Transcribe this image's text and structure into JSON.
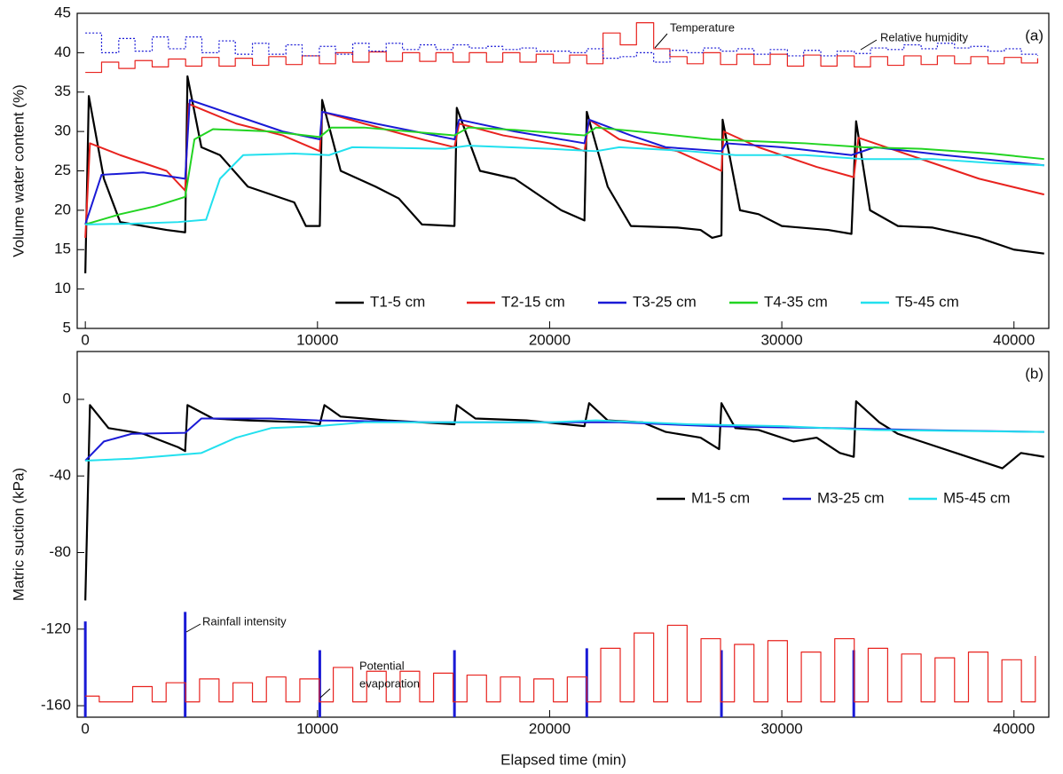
{
  "chart_data": [
    {
      "type": "line",
      "y_label": "Volume water content (%)",
      "panel_label": "(a)",
      "xlim": [
        -350,
        41500
      ],
      "xticks": [
        0,
        10000,
        20000,
        30000,
        40000
      ],
      "ylim": [
        5,
        45
      ],
      "yticks": [
        5,
        10,
        15,
        20,
        25,
        30,
        35,
        40,
        45
      ],
      "legend": "lower right",
      "annotations": [
        "Temperature",
        "Relative humidity"
      ],
      "series": [
        {
          "name": "T1-5 cm",
          "color": "#000000",
          "width": 2.2,
          "x": [
            0,
            150,
            800,
            1500,
            2500,
            3500,
            4300,
            4400,
            5000,
            5800,
            7000,
            8000,
            9000,
            9500,
            10100,
            10200,
            11000,
            12500,
            13500,
            14500,
            15900,
            16000,
            17000,
            18500,
            19500,
            20500,
            21500,
            21600,
            22500,
            23500,
            25500,
            26500,
            27000,
            27400,
            27450,
            28200,
            29000,
            30000,
            32000,
            33000,
            33200,
            33800,
            35000,
            36500,
            38500,
            40000,
            41300
          ],
          "values": [
            12,
            34.5,
            24,
            18.5,
            18,
            17.5,
            17.2,
            37,
            28,
            27,
            23,
            22,
            21,
            18,
            18,
            34,
            25,
            23,
            21.5,
            18.2,
            18,
            33,
            25,
            24,
            22,
            20,
            18.7,
            32.5,
            23,
            18,
            17.8,
            17.5,
            16.5,
            16.8,
            31.5,
            20,
            19.5,
            18,
            17.5,
            17,
            31.3,
            20,
            18,
            17.8,
            16.5,
            15,
            14.5
          ]
        },
        {
          "name": "T2-15 cm",
          "color": "#e8231f",
          "width": 2,
          "x": [
            0,
            200,
            1500,
            3500,
            4300,
            4450,
            6500,
            8500,
            10100,
            10200,
            12000,
            14500,
            15900,
            16100,
            18000,
            21000,
            21500,
            21700,
            23000,
            25500,
            27400,
            27500,
            29000,
            31500,
            33100,
            33300,
            35500,
            38500,
            41300
          ],
          "values": [
            16.5,
            28.5,
            27,
            25,
            22.5,
            33.5,
            31,
            29.5,
            27.5,
            32.5,
            31,
            29,
            28,
            31,
            29.5,
            28,
            27.5,
            31.5,
            29,
            27.5,
            25,
            30,
            28,
            25.5,
            24.2,
            29.2,
            27,
            24,
            22
          ]
        },
        {
          "name": "T3-25 cm",
          "color": "#1a1ad6",
          "width": 2,
          "x": [
            0,
            700,
            2500,
            4300,
            4500,
            6500,
            8500,
            10100,
            10200,
            12500,
            15900,
            16100,
            18500,
            21500,
            21700,
            23500,
            25000,
            27400,
            27600,
            30000,
            33000,
            34000,
            37000,
            41300
          ],
          "values": [
            18.2,
            24.5,
            24.8,
            24,
            34,
            32,
            30,
            29,
            32.5,
            31,
            29,
            31.5,
            30,
            28.5,
            31.5,
            29.5,
            28,
            27.5,
            28.5,
            28,
            27,
            28,
            27,
            25.7
          ]
        },
        {
          "name": "T4-35 cm",
          "color": "#22d422",
          "width": 2,
          "x": [
            0,
            1500,
            3000,
            4300,
            4700,
            5500,
            8000,
            10100,
            10600,
            12000,
            15900,
            16500,
            18500,
            21500,
            22000,
            24500,
            27000,
            28500,
            31000,
            33500,
            36000,
            39000,
            41300
          ],
          "values": [
            18.2,
            19.5,
            20.5,
            21.7,
            29,
            30.3,
            30,
            29.3,
            30.5,
            30.5,
            29.5,
            30.5,
            30.2,
            29.5,
            30.5,
            29.8,
            29,
            28.8,
            28.5,
            28,
            27.8,
            27.2,
            26.5
          ]
        },
        {
          "name": "T5-45 cm",
          "color": "#22e0ee",
          "width": 2,
          "x": [
            0,
            2000,
            4000,
            5200,
            5800,
            6800,
            9000,
            10500,
            11500,
            15500,
            16500,
            20000,
            22000,
            23000,
            26000,
            28000,
            31000,
            33500,
            36500,
            39000,
            41300
          ],
          "values": [
            18.2,
            18.3,
            18.5,
            18.8,
            24,
            27,
            27.2,
            27,
            28,
            27.8,
            28.2,
            27.8,
            27.5,
            28,
            27.5,
            27,
            27,
            26.5,
            26.5,
            26,
            25.7
          ]
        },
        {
          "name": "Temperature",
          "color": "#e8231f",
          "width": 1.2,
          "step": true,
          "x": [
            0,
            700,
            1440,
            2140,
            2880,
            3580,
            4320,
            5020,
            5760,
            6460,
            7200,
            7900,
            8640,
            9340,
            10080,
            10780,
            11520,
            12220,
            12960,
            13660,
            14400,
            15100,
            15840,
            16540,
            17280,
            17980,
            18720,
            19420,
            20160,
            20860,
            21600,
            22300,
            23040,
            23740,
            24480,
            25180,
            25920,
            26620,
            27360,
            28060,
            28800,
            29500,
            30240,
            30940,
            31680,
            32380,
            33120,
            33820,
            34560,
            35260,
            36000,
            36700,
            37440,
            38140,
            38880,
            39580,
            40320,
            41020
          ],
          "values": [
            37.5,
            38.8,
            38,
            39,
            38.2,
            39.2,
            38.3,
            39.4,
            38.3,
            39.3,
            38.4,
            39.5,
            38.5,
            39.6,
            38.6,
            40,
            38.8,
            40.1,
            38.9,
            40,
            38.9,
            40,
            38.8,
            40,
            38.8,
            40,
            38.8,
            39.8,
            38.7,
            39.7,
            38.6,
            42.5,
            41,
            43.8,
            40.5,
            39.5,
            38.6,
            40,
            38.5,
            39.8,
            38.5,
            39.8,
            38.3,
            39.7,
            38.3,
            39.6,
            38.2,
            39.5,
            38.4,
            39.6,
            38.5,
            39.6,
            38.6,
            39.5,
            38.6,
            39.4,
            38.7,
            39.3
          ]
        },
        {
          "name": "Relative humidity",
          "color": "#1a1ad6",
          "width": 1.2,
          "step": true,
          "dashed": true,
          "x": [
            0,
            700,
            1440,
            2140,
            2880,
            3580,
            4320,
            5020,
            5760,
            6460,
            7200,
            7900,
            8640,
            9340,
            10080,
            10780,
            11520,
            12220,
            12960,
            13660,
            14400,
            15100,
            15840,
            16540,
            17280,
            17980,
            18720,
            19420,
            20160,
            20860,
            21600,
            22300,
            23040,
            23740,
            24480,
            25180,
            25920,
            26620,
            27360,
            28060,
            28800,
            29500,
            30240,
            30940,
            31680,
            32380,
            33120,
            33820,
            34560,
            35260,
            36000,
            36700,
            37440,
            38140,
            38880,
            39580,
            40320,
            41020
          ],
          "values": [
            42.5,
            40,
            41.8,
            40.2,
            42,
            40.5,
            42,
            40,
            41.5,
            39.8,
            41.2,
            39.8,
            41,
            39.6,
            40.8,
            39.8,
            41.2,
            40.2,
            41.2,
            40.4,
            41,
            40.4,
            41,
            40.6,
            40.8,
            40.4,
            40.6,
            40.2,
            40.2,
            40,
            40.5,
            39.3,
            39.5,
            40,
            38.8,
            40.3,
            40,
            40.6,
            40.2,
            40.5,
            39.8,
            40.4,
            39.6,
            40.3,
            39.6,
            40.2,
            39.9,
            40.6,
            40.4,
            41,
            40.5,
            41.2,
            40.6,
            40.8,
            40.2,
            40.5,
            39.8,
            39.6
          ]
        }
      ]
    },
    {
      "type": "line",
      "y_label": "Matric suction (kPa)",
      "x_label": "Elapsed time (min)",
      "panel_label": "(b)",
      "xlim": [
        -350,
        41500
      ],
      "xticks": [
        0,
        10000,
        20000,
        30000,
        40000
      ],
      "ylim": [
        -166,
        25
      ],
      "yticks": [
        -160,
        -120,
        -80,
        -40,
        0
      ],
      "legend": "center right",
      "annotations": [
        "Rainfall intensity",
        "Potential",
        "evaporation"
      ],
      "series": [
        {
          "name": "M1-5 cm",
          "color": "#000000",
          "width": 2.2,
          "x": [
            0,
            200,
            1000,
            2500,
            4000,
            4300,
            4400,
            5500,
            7000,
            9500,
            10100,
            10300,
            11000,
            13000,
            15900,
            16000,
            16800,
            19000,
            21500,
            21700,
            22500,
            24000,
            25000,
            26500,
            27300,
            27400,
            28000,
            29000,
            30500,
            31500,
            32500,
            33100,
            33200,
            34200,
            35000,
            36000,
            37500,
            38500,
            39500,
            40300,
            41300
          ],
          "values": [
            -105,
            -3,
            -15,
            -18,
            -25,
            -27,
            -3,
            -10,
            -11,
            -12,
            -13,
            -3,
            -9,
            -11,
            -13,
            -3,
            -10,
            -11,
            -14,
            -2,
            -11,
            -12,
            -17,
            -20,
            -26,
            -2,
            -15,
            -16,
            -22,
            -20,
            -28,
            -30,
            -1,
            -12,
            -18,
            -22,
            -28,
            -32,
            -36,
            -28,
            -30
          ]
        },
        {
          "name": "M3-25 cm",
          "color": "#1a1ad6",
          "width": 2,
          "x": [
            0,
            800,
            2000,
            4300,
            5000,
            8000,
            10000,
            15000,
            21000,
            23000,
            27000,
            32000,
            36000,
            41300
          ],
          "values": [
            -32,
            -22,
            -18,
            -17.5,
            -10,
            -10,
            -11,
            -12,
            -12,
            -12,
            -14,
            -15,
            -16,
            -17
          ]
        },
        {
          "name": "M5-45 cm",
          "color": "#22e0ee",
          "width": 2,
          "x": [
            0,
            2000,
            4000,
            5000,
            6500,
            8000,
            10000,
            12000,
            16000,
            20000,
            22000,
            26000,
            30000,
            34000,
            41300
          ],
          "values": [
            -32,
            -31,
            -29,
            -28,
            -20,
            -15,
            -14,
            -12,
            -12,
            -12,
            -11,
            -13,
            -14,
            -16,
            -17
          ]
        },
        {
          "name": "Rainfall intensity",
          "color": "#1a1ad6",
          "width": 3,
          "bars": true,
          "x": [
            0,
            4300,
            10100,
            15900,
            21600,
            27400,
            33100
          ],
          "values": [
            -116,
            -111,
            -131,
            -131,
            -130,
            -131,
            -131
          ]
        },
        {
          "name": "Potential evaporation",
          "color": "#e8231f",
          "width": 1.2,
          "step": true,
          "x": [
            0,
            600,
            1440,
            2040,
            2880,
            3480,
            4320,
            4920,
            5760,
            6360,
            7200,
            7800,
            8640,
            9240,
            10080,
            10680,
            11520,
            12120,
            12960,
            13560,
            14400,
            15000,
            15840,
            16440,
            17280,
            17880,
            18720,
            19320,
            20160,
            20760,
            21600,
            22200,
            23040,
            23640,
            24480,
            25080,
            25920,
            26520,
            27360,
            27960,
            28800,
            29400,
            30240,
            30840,
            31680,
            32280,
            33120,
            33720,
            34560,
            35160,
            36000,
            36600,
            37440,
            38040,
            38880,
            39480,
            40320,
            40920
          ],
          "values": [
            -155,
            -158,
            -158,
            -150,
            -158,
            -148,
            -158,
            -146,
            -158,
            -148,
            -158,
            -145,
            -158,
            -146,
            -158,
            -140,
            -158,
            -142,
            -158,
            -142,
            -158,
            -143,
            -158,
            -144,
            -158,
            -145,
            -158,
            -146,
            -158,
            -145,
            -158,
            -130,
            -158,
            -122,
            -158,
            -118,
            -158,
            -125,
            -158,
            -128,
            -158,
            -126,
            -158,
            -132,
            -158,
            -125,
            -158,
            -130,
            -158,
            -133,
            -158,
            -135,
            -158,
            -132,
            -158,
            -136,
            -158,
            -134
          ]
        }
      ]
    }
  ]
}
